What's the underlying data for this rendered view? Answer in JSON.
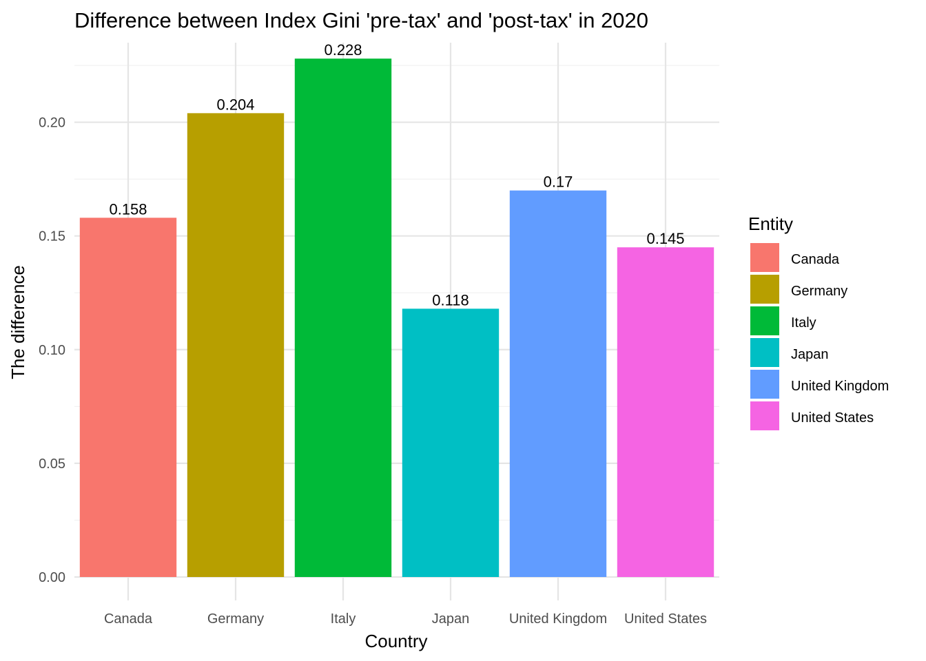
{
  "chart_data": {
    "type": "bar",
    "title": "Difference between Index Gini 'pre-tax' and 'post-tax' in 2020",
    "xlabel": "Country",
    "ylabel": "The difference",
    "categories": [
      "Canada",
      "Germany",
      "Italy",
      "Japan",
      "United Kingdom",
      "United States"
    ],
    "values": [
      0.158,
      0.204,
      0.228,
      0.118,
      0.17,
      0.145
    ],
    "data_labels": [
      "0.158",
      "0.204",
      "0.228",
      "0.118",
      "0.17",
      "0.145"
    ],
    "ylim": [
      0,
      0.235
    ],
    "y_ticks": [
      0,
      0.05,
      0.1,
      0.15,
      0.2
    ],
    "y_tick_labels": [
      "0.00",
      "0.05",
      "0.10",
      "0.15",
      "0.20"
    ],
    "y_minor_ticks": [
      0.025,
      0.075,
      0.125,
      0.175,
      0.225
    ],
    "grid": true,
    "legend": {
      "title": "Entity",
      "placement": "right",
      "entries": [
        "Canada",
        "Germany",
        "Italy",
        "Japan",
        "United Kingdom",
        "United States"
      ]
    },
    "colors": [
      "#F8766D",
      "#B79F00",
      "#00BA38",
      "#00BFC4",
      "#619CFF",
      "#F564E3"
    ]
  }
}
